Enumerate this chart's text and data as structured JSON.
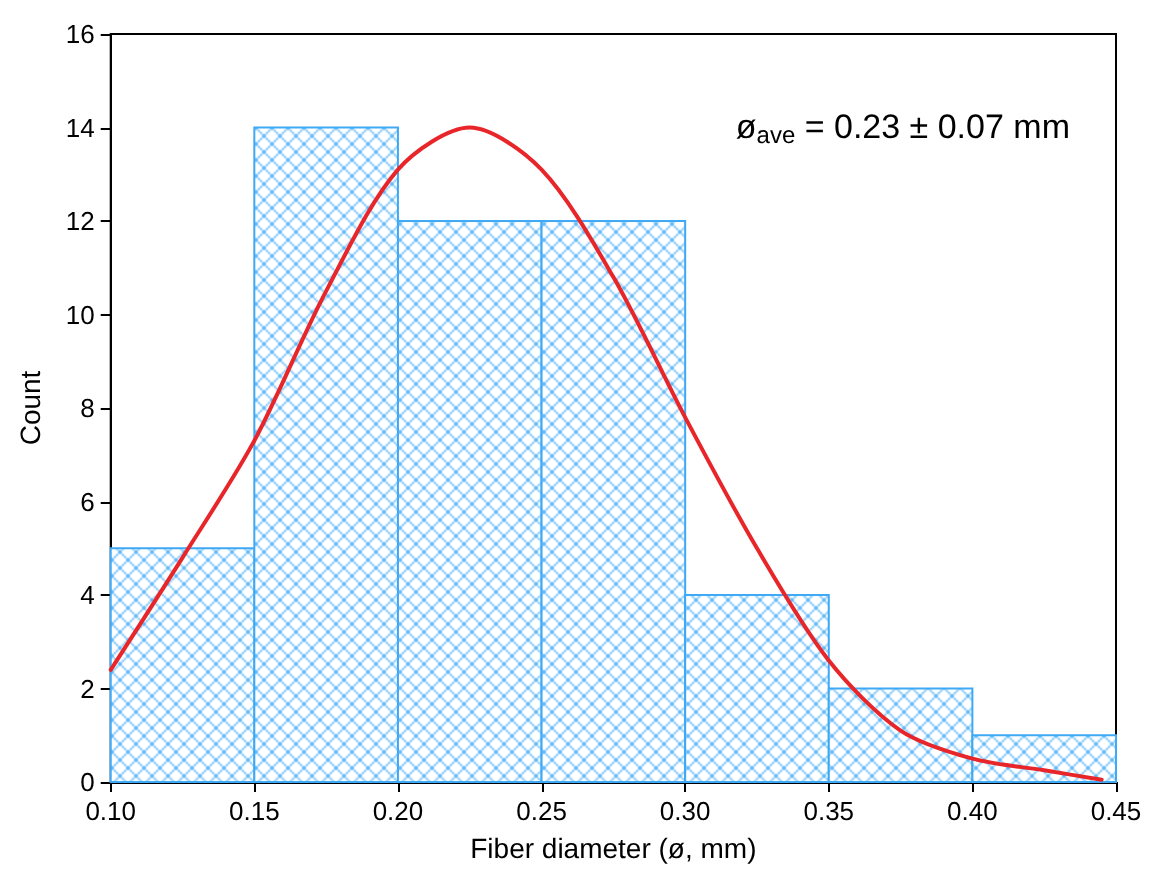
{
  "chart_data": {
    "type": "histogram",
    "xlabel": "Fiber diameter (ø, mm)",
    "ylabel": "Count",
    "bins": [
      0.1,
      0.15,
      0.2,
      0.25,
      0.3,
      0.35,
      0.4,
      0.45
    ],
    "values": [
      5,
      14,
      12,
      12,
      4,
      2,
      1
    ],
    "color": "#3fa9f5",
    "series": [
      {
        "type": "line",
        "color": "#e8262a",
        "marker": "none",
        "line_style": "solid",
        "x": [
          0.1,
          0.125,
          0.15,
          0.175,
          0.2,
          0.225,
          0.25,
          0.275,
          0.3,
          0.325,
          0.35,
          0.375,
          0.4,
          0.425,
          0.445
        ],
        "values": [
          2.4,
          4.8,
          7.3,
          10.5,
          13.1,
          14,
          13.1,
          10.8,
          7.8,
          5.0,
          2.6,
          1.1,
          0.5,
          0.25,
          0.05
        ]
      }
    ],
    "xlim": [
      0.1,
      0.45
    ],
    "xticks": [
      {
        "value": 0.1,
        "label": "0.10"
      },
      {
        "value": 0.15,
        "label": "0.15"
      },
      {
        "value": 0.2,
        "label": "0.20"
      },
      {
        "value": 0.25,
        "label": "0.25"
      },
      {
        "value": 0.3,
        "label": "0.30"
      },
      {
        "value": 0.35,
        "label": "0.35"
      },
      {
        "value": 0.4,
        "label": "0.40"
      },
      {
        "value": 0.45,
        "label": "0.45"
      }
    ],
    "ylim": [
      0,
      16
    ],
    "yticks": [
      0,
      2,
      4,
      6,
      8,
      10,
      12,
      14,
      16
    ],
    "annotations": [
      "ø$_{ave}$ = 0.23 ± 0.07 mm"
    ],
    "grid": false,
    "legend": false
  }
}
